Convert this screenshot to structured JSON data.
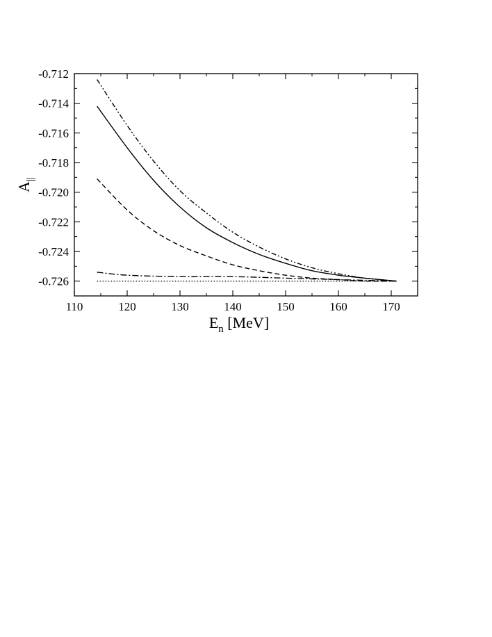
{
  "chart_data": {
    "type": "line",
    "title": "",
    "xlabel": "E",
    "xlabel_sub": "n",
    "xlabel_unit": " [MeV]",
    "ylabel": "A",
    "ylabel_sub": "||",
    "xlim": [
      110,
      175
    ],
    "ylim": [
      -0.727,
      -0.712
    ],
    "xticks": [
      110,
      120,
      130,
      140,
      150,
      160,
      170
    ],
    "yticks": [
      -0.712,
      -0.714,
      -0.716,
      -0.718,
      -0.72,
      -0.722,
      -0.724,
      -0.726
    ],
    "ytick_labels": [
      "-0.712",
      "-0.714",
      "-0.716",
      "-0.718",
      "-0.720",
      "-0.722",
      "-0.724",
      "-0.726"
    ],
    "grid": false,
    "legend": "none",
    "series": [
      {
        "style": "dash-dot-dot",
        "color": "#000000",
        "x": [
          114.3,
          120,
          125,
          130,
          135,
          140,
          145,
          150,
          155,
          160,
          165,
          171
        ],
        "y": [
          -0.7124,
          -0.7155,
          -0.7179,
          -0.7199,
          -0.7214,
          -0.7227,
          -0.7237,
          -0.7245,
          -0.7251,
          -0.7255,
          -0.7258,
          -0.726
        ]
      },
      {
        "style": "solid",
        "color": "#000000",
        "x": [
          114.3,
          120,
          125,
          130,
          135,
          140,
          145,
          150,
          155,
          160,
          165,
          171
        ],
        "y": [
          -0.7142,
          -0.717,
          -0.7192,
          -0.721,
          -0.7224,
          -0.7234,
          -0.7242,
          -0.7248,
          -0.7253,
          -0.7256,
          -0.7258,
          -0.726
        ]
      },
      {
        "style": "dashed",
        "color": "#000000",
        "x": [
          114.3,
          120,
          125,
          130,
          135,
          140,
          145,
          150,
          155,
          160,
          165,
          171
        ],
        "y": [
          -0.7191,
          -0.7212,
          -0.7226,
          -0.7236,
          -0.7243,
          -0.7249,
          -0.7253,
          -0.7256,
          -0.7258,
          -0.7259,
          -0.726,
          -0.726
        ]
      },
      {
        "style": "dash-dot",
        "color": "#000000",
        "x": [
          114.3,
          120,
          130,
          140,
          150,
          160,
          171
        ],
        "y": [
          -0.7254,
          -0.7256,
          -0.7257,
          -0.7257,
          -0.7258,
          -0.7259,
          -0.726
        ]
      },
      {
        "style": "dotted",
        "color": "#000000",
        "x": [
          114.3,
          130,
          150,
          171
        ],
        "y": [
          -0.726,
          -0.726,
          -0.726,
          -0.726
        ]
      }
    ]
  }
}
